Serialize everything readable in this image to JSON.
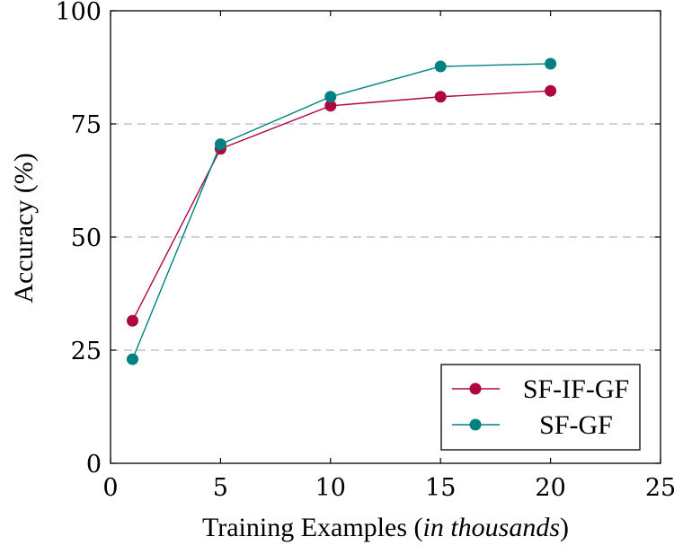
{
  "chart_data": {
    "type": "line",
    "title": "",
    "xlabel": {
      "prefix": "Training Examples (",
      "italic": "in thousands",
      "suffix": ")"
    },
    "ylabel": "Accuracy (%)",
    "xlim": [
      0,
      25
    ],
    "ylim": [
      0,
      100
    ],
    "xticks": [
      0,
      5,
      10,
      15,
      20,
      25
    ],
    "yticks": [
      0,
      25,
      50,
      75,
      100
    ],
    "x": [
      1,
      5,
      10,
      15,
      20
    ],
    "series": [
      {
        "name": "SF-IF-GF",
        "color": "#b0063e",
        "values": [
          31.5,
          69.5,
          79,
          81,
          82.3
        ]
      },
      {
        "name": "SF-GF",
        "color": "#008080",
        "values": [
          23,
          70.5,
          81,
          87.7,
          88.3
        ]
      }
    ],
    "grid": "horizontal-dashed",
    "legend_position": "bottom-right"
  }
}
